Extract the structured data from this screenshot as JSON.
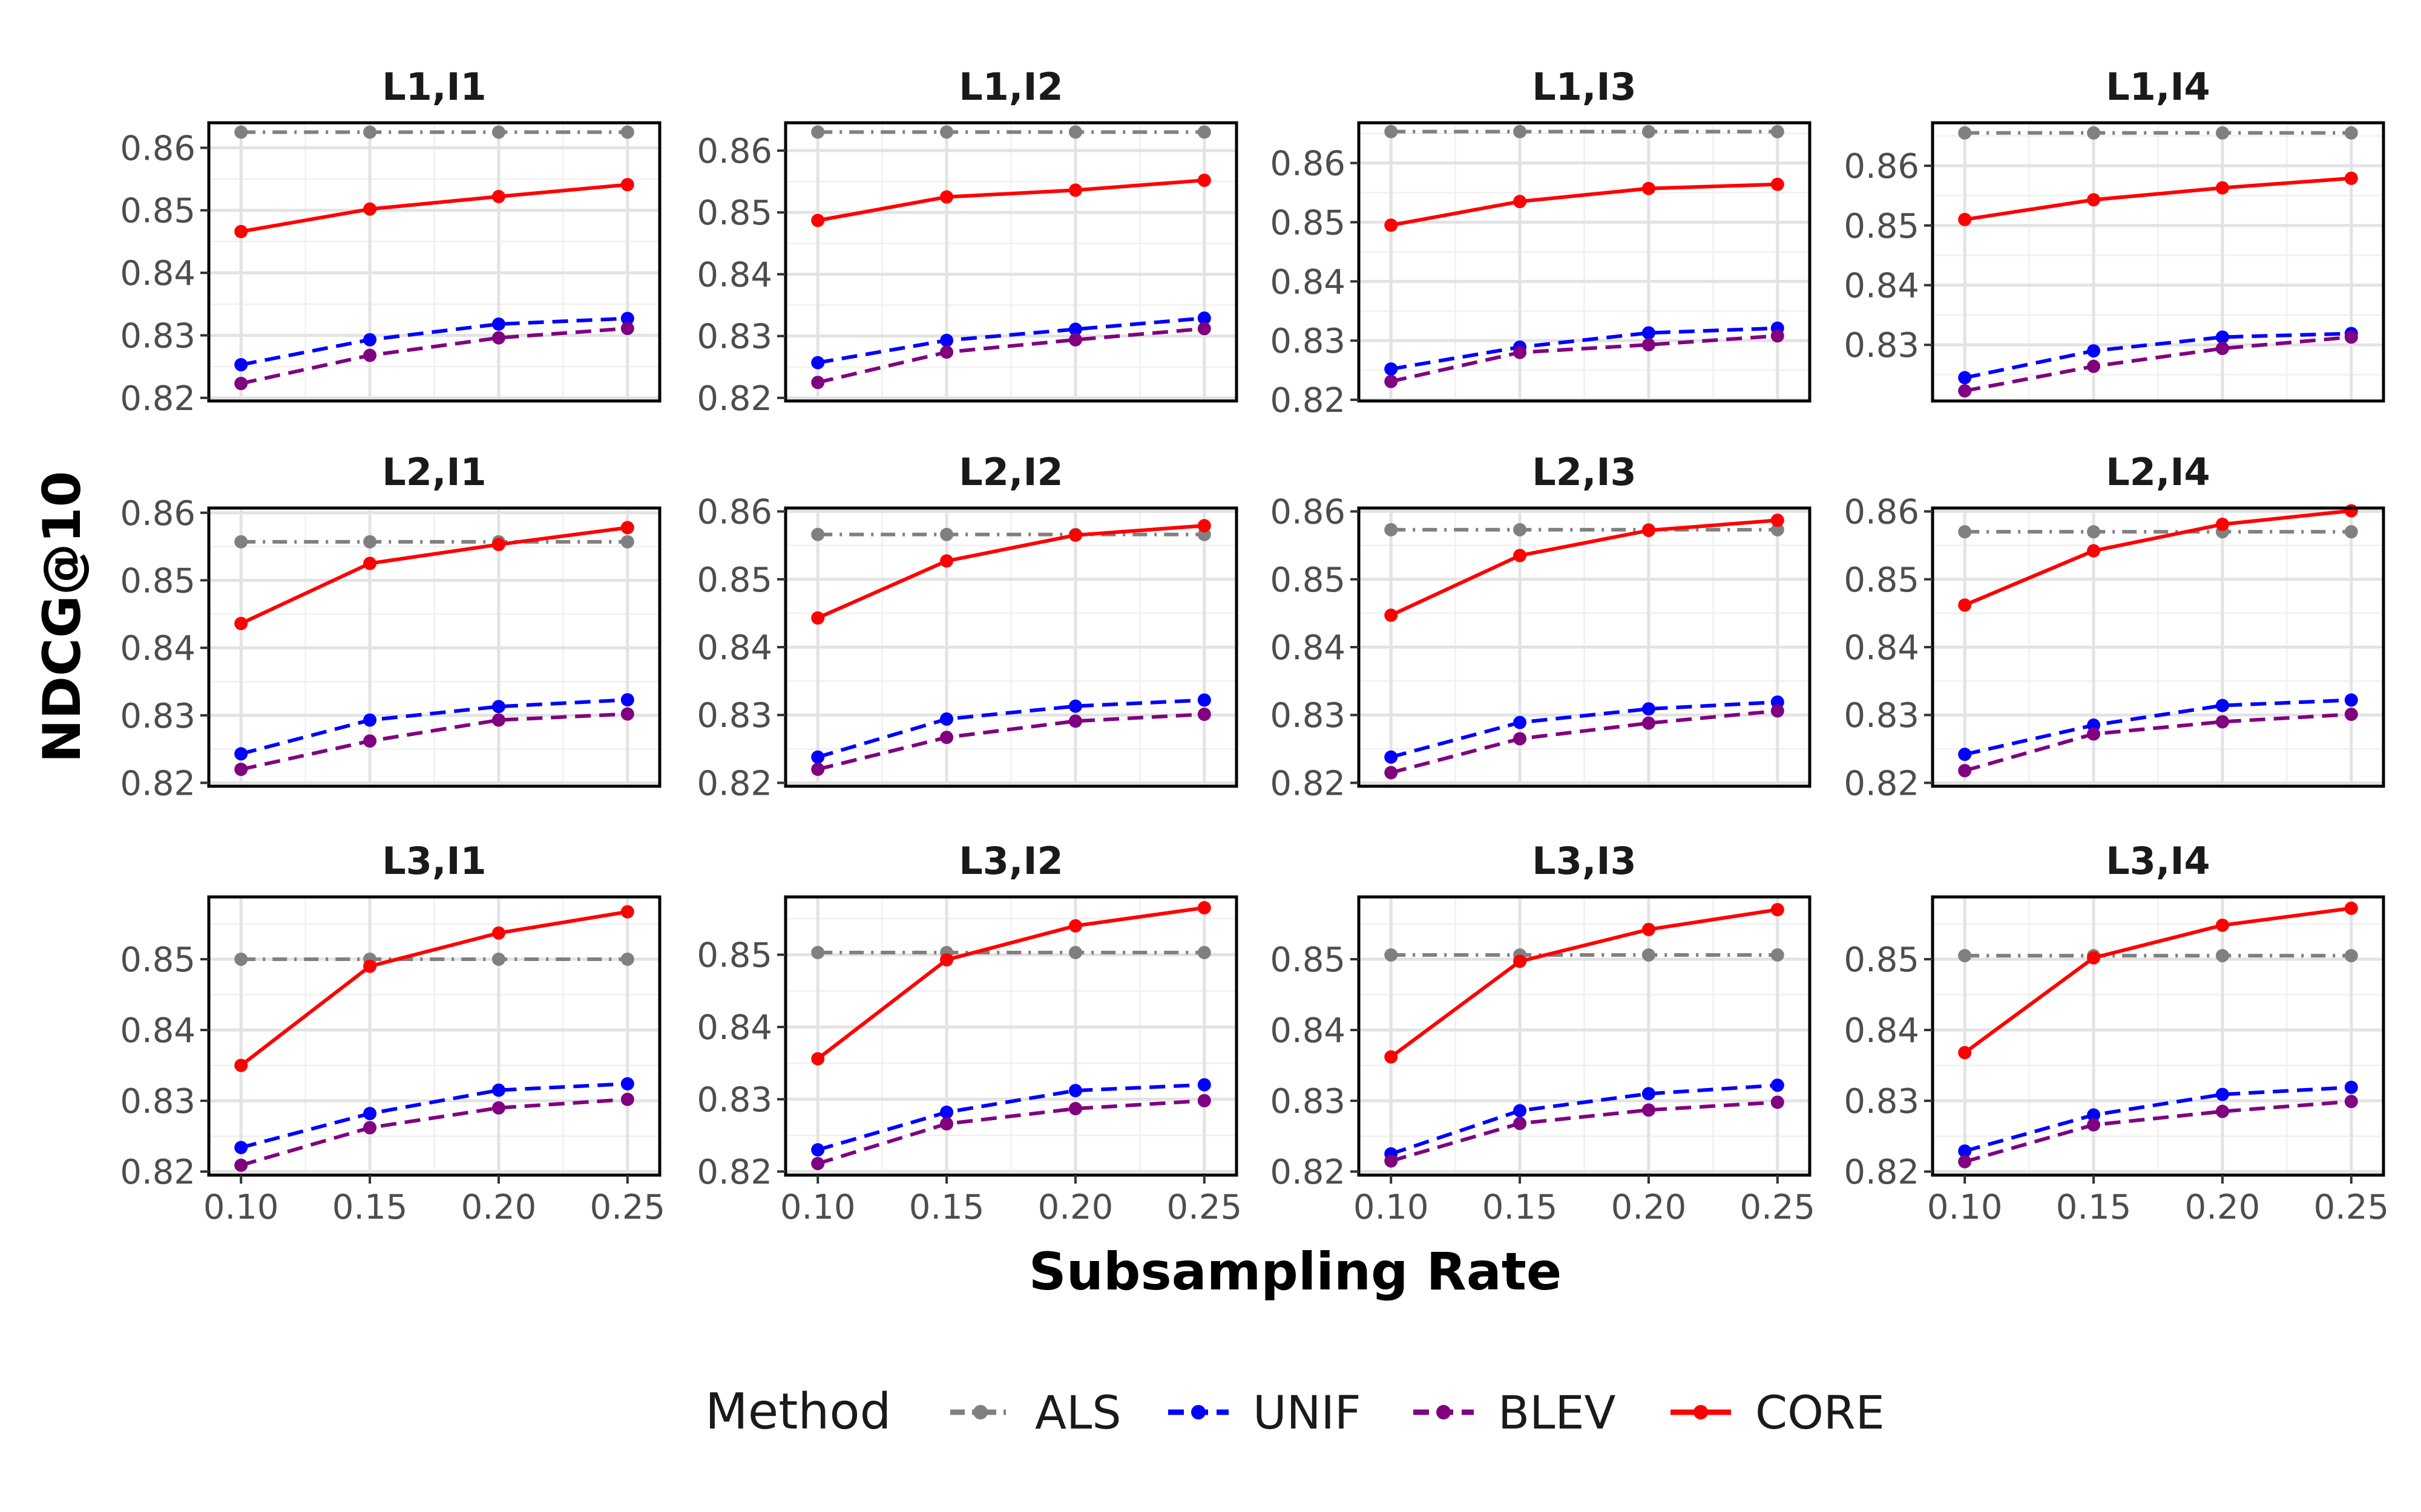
{
  "chart_data": {
    "type": "line",
    "xlabel": "Subsampling Rate",
    "ylabel": "NDCG@10",
    "x": [
      0.1,
      0.15,
      0.2,
      0.25
    ],
    "x_tick_labels": [
      "0.10",
      "0.15",
      "0.20",
      "0.25"
    ],
    "grid": true,
    "legend": {
      "title": "Method",
      "placement": "bottom",
      "entries": [
        {
          "name": "ALS",
          "color": "#808080",
          "dash": "dashdot"
        },
        {
          "name": "UNIF",
          "color": "#0000FF",
          "dash": "dashed"
        },
        {
          "name": "BLEV",
          "color": "#800080",
          "dash": "dashed"
        },
        {
          "name": "CORE",
          "color": "#FF0000",
          "dash": "solid"
        }
      ]
    },
    "panels": [
      {
        "title": "L1,I1",
        "ylim": [
          0.8195,
          0.864
        ],
        "yticks": [
          "0.82",
          "0.83",
          "0.84",
          "0.85",
          "0.86"
        ],
        "series": [
          {
            "name": "ALS",
            "values": [
              0.8625,
              0.8625,
              0.8625,
              0.8625
            ]
          },
          {
            "name": "UNIF",
            "values": [
              0.8253,
              0.8293,
              0.8318,
              0.8327
            ]
          },
          {
            "name": "BLEV",
            "values": [
              0.8223,
              0.8268,
              0.8296,
              0.8311
            ]
          },
          {
            "name": "CORE",
            "values": [
              0.8466,
              0.8502,
              0.8522,
              0.8541
            ]
          }
        ]
      },
      {
        "title": "L1,I2",
        "ylim": [
          0.8195,
          0.8645
        ],
        "yticks": [
          "0.82",
          "0.83",
          "0.84",
          "0.85",
          "0.86"
        ],
        "series": [
          {
            "name": "ALS",
            "values": [
              0.863,
              0.863,
              0.863,
              0.863
            ]
          },
          {
            "name": "UNIF",
            "values": [
              0.8257,
              0.8293,
              0.8311,
              0.8329
            ]
          },
          {
            "name": "BLEV",
            "values": [
              0.8225,
              0.8274,
              0.8294,
              0.8312
            ]
          },
          {
            "name": "CORE",
            "values": [
              0.8487,
              0.8525,
              0.8536,
              0.8552
            ]
          }
        ]
      },
      {
        "title": "L1,I3",
        "ylim": [
          0.8198,
          0.8668
        ],
        "yticks": [
          "0.82",
          "0.83",
          "0.84",
          "0.85",
          "0.86"
        ],
        "series": [
          {
            "name": "ALS",
            "values": [
              0.8653,
              0.8653,
              0.8653,
              0.8653
            ]
          },
          {
            "name": "UNIF",
            "values": [
              0.8252,
              0.8289,
              0.8313,
              0.8321
            ]
          },
          {
            "name": "BLEV",
            "values": [
              0.8231,
              0.828,
              0.8293,
              0.8308
            ]
          },
          {
            "name": "CORE",
            "values": [
              0.8495,
              0.8535,
              0.8557,
              0.8564
            ]
          }
        ]
      },
      {
        "title": "L1,I4",
        "ylim": [
          0.8206,
          0.8672
        ],
        "yticks": [
          "0.83",
          "0.84",
          "0.85",
          "0.86"
        ],
        "series": [
          {
            "name": "ALS",
            "values": [
              0.8655,
              0.8655,
              0.8655,
              0.8655
            ]
          },
          {
            "name": "UNIF",
            "values": [
              0.8245,
              0.829,
              0.8313,
              0.8319
            ]
          },
          {
            "name": "BLEV",
            "values": [
              0.8223,
              0.8264,
              0.8294,
              0.8313
            ]
          },
          {
            "name": "CORE",
            "values": [
              0.851,
              0.8543,
              0.8563,
              0.8579
            ]
          }
        ]
      },
      {
        "title": "L2,I1",
        "ylim": [
          0.8195,
          0.8607
        ],
        "yticks": [
          "0.82",
          "0.83",
          "0.84",
          "0.85",
          "0.86"
        ],
        "series": [
          {
            "name": "ALS",
            "values": [
              0.8557,
              0.8557,
              0.8557,
              0.8557
            ]
          },
          {
            "name": "UNIF",
            "values": [
              0.8243,
              0.8293,
              0.8313,
              0.8323
            ]
          },
          {
            "name": "BLEV",
            "values": [
              0.822,
              0.8262,
              0.8293,
              0.8302
            ]
          },
          {
            "name": "CORE",
            "values": [
              0.8436,
              0.8525,
              0.8553,
              0.8578
            ]
          }
        ]
      },
      {
        "title": "L2,I2",
        "ylim": [
          0.8195,
          0.8605
        ],
        "yticks": [
          "0.82",
          "0.83",
          "0.84",
          "0.85",
          "0.86"
        ],
        "series": [
          {
            "name": "ALS",
            "values": [
              0.8566,
              0.8566,
              0.8566,
              0.8566
            ]
          },
          {
            "name": "UNIF",
            "values": [
              0.8238,
              0.8294,
              0.8313,
              0.8322
            ]
          },
          {
            "name": "BLEV",
            "values": [
              0.822,
              0.8267,
              0.8291,
              0.8301
            ]
          },
          {
            "name": "CORE",
            "values": [
              0.8443,
              0.8527,
              0.8565,
              0.8579
            ]
          }
        ]
      },
      {
        "title": "L2,I3",
        "ylim": [
          0.8195,
          0.8605
        ],
        "yticks": [
          "0.82",
          "0.83",
          "0.84",
          "0.85",
          "0.86"
        ],
        "series": [
          {
            "name": "ALS",
            "values": [
              0.8573,
              0.8573,
              0.8573,
              0.8573
            ]
          },
          {
            "name": "UNIF",
            "values": [
              0.8238,
              0.8289,
              0.8309,
              0.8319
            ]
          },
          {
            "name": "BLEV",
            "values": [
              0.8215,
              0.8265,
              0.8288,
              0.8306
            ]
          },
          {
            "name": "CORE",
            "values": [
              0.8447,
              0.8535,
              0.8572,
              0.8587
            ]
          }
        ]
      },
      {
        "title": "L2,I4",
        "ylim": [
          0.8195,
          0.8605
        ],
        "yticks": [
          "0.82",
          "0.83",
          "0.84",
          "0.85",
          "0.86"
        ],
        "series": [
          {
            "name": "ALS",
            "values": [
              0.857,
              0.857,
              0.857,
              0.857
            ]
          },
          {
            "name": "UNIF",
            "values": [
              0.8242,
              0.8285,
              0.8314,
              0.8322
            ]
          },
          {
            "name": "BLEV",
            "values": [
              0.8218,
              0.8272,
              0.829,
              0.8301
            ]
          },
          {
            "name": "CORE",
            "values": [
              0.8462,
              0.8542,
              0.8581,
              0.8601
            ]
          }
        ]
      },
      {
        "title": "L3,I1",
        "ylim": [
          0.8195,
          0.8588
        ],
        "yticks": [
          "0.82",
          "0.83",
          "0.84",
          "0.85"
        ],
        "series": [
          {
            "name": "ALS",
            "values": [
              0.85,
              0.85,
              0.85,
              0.85
            ]
          },
          {
            "name": "UNIF",
            "values": [
              0.8234,
              0.8282,
              0.8315,
              0.8324
            ]
          },
          {
            "name": "BLEV",
            "values": [
              0.8209,
              0.8262,
              0.829,
              0.8302
            ]
          },
          {
            "name": "CORE",
            "values": [
              0.835,
              0.849,
              0.8537,
              0.8567
            ]
          }
        ]
      },
      {
        "title": "L3,I2",
        "ylim": [
          0.8195,
          0.858
        ],
        "yticks": [
          "0.82",
          "0.83",
          "0.84",
          "0.85"
        ],
        "series": [
          {
            "name": "ALS",
            "values": [
              0.8503,
              0.8503,
              0.8503,
              0.8503
            ]
          },
          {
            "name": "UNIF",
            "values": [
              0.823,
              0.8282,
              0.8312,
              0.832
            ]
          },
          {
            "name": "BLEV",
            "values": [
              0.8211,
              0.8266,
              0.8287,
              0.8298
            ]
          },
          {
            "name": "CORE",
            "values": [
              0.8356,
              0.8493,
              0.854,
              0.8565
            ]
          }
        ]
      },
      {
        "title": "L3,I3",
        "ylim": [
          0.8195,
          0.8588
        ],
        "yticks": [
          "0.82",
          "0.83",
          "0.84",
          "0.85"
        ],
        "series": [
          {
            "name": "ALS",
            "values": [
              0.8506,
              0.8506,
              0.8506,
              0.8506
            ]
          },
          {
            "name": "UNIF",
            "values": [
              0.8225,
              0.8286,
              0.831,
              0.8322
            ]
          },
          {
            "name": "BLEV",
            "values": [
              0.8215,
              0.8268,
              0.8287,
              0.8298
            ]
          },
          {
            "name": "CORE",
            "values": [
              0.8362,
              0.8497,
              0.8542,
              0.857
            ]
          }
        ]
      },
      {
        "title": "L3,I4",
        "ylim": [
          0.8195,
          0.8588
        ],
        "yticks": [
          "0.82",
          "0.83",
          "0.84",
          "0.85"
        ],
        "series": [
          {
            "name": "ALS",
            "values": [
              0.8505,
              0.8505,
              0.8505,
              0.8505
            ]
          },
          {
            "name": "UNIF",
            "values": [
              0.8229,
              0.828,
              0.8309,
              0.8319
            ]
          },
          {
            "name": "BLEV",
            "values": [
              0.8214,
              0.8266,
              0.8285,
              0.8299
            ]
          },
          {
            "name": "CORE",
            "values": [
              0.8368,
              0.8502,
              0.8548,
              0.8572
            ]
          }
        ]
      }
    ]
  }
}
